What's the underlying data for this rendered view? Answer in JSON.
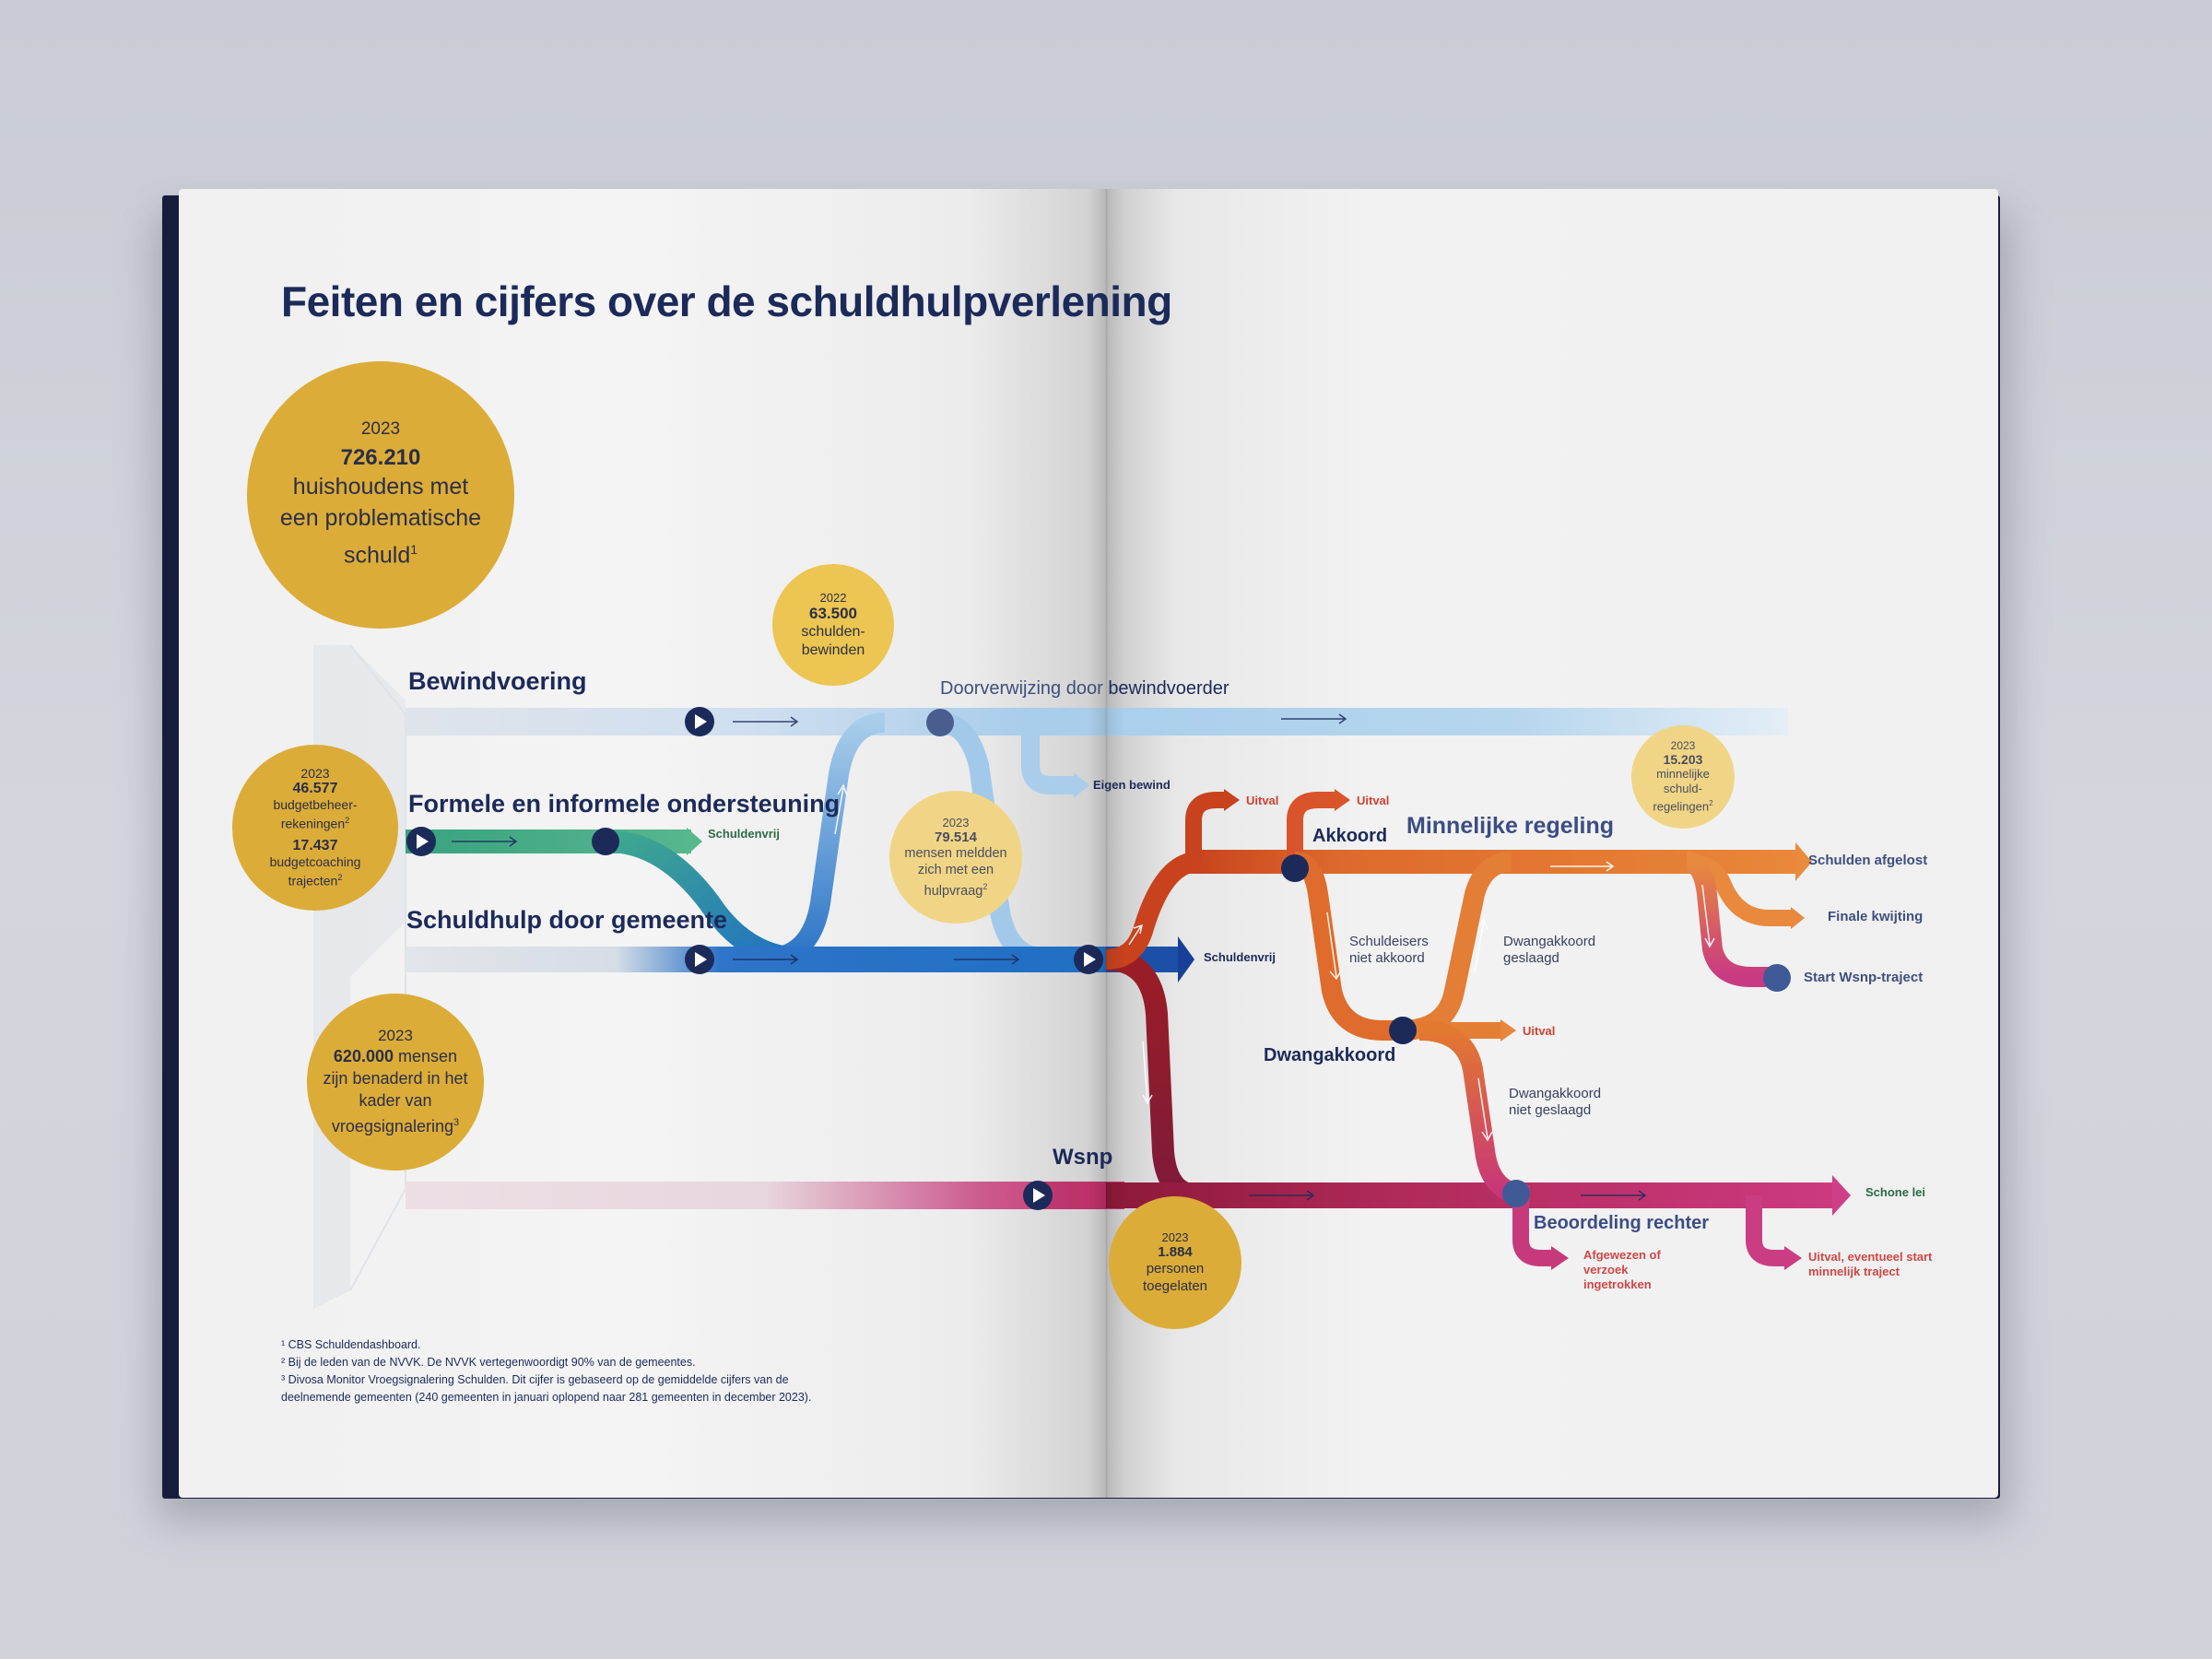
{
  "title": "Feiten en cijfers over de schuldhulpverlening",
  "stats": {
    "households": {
      "year": "2023",
      "value": "726.210",
      "text": "huishoudens met een problematische schuld",
      "note": "1"
    },
    "budget": {
      "year": "2023",
      "value1": "46.577",
      "text1": "budgetbeheer-rekeningen",
      "note1": "2",
      "value2": "17.437",
      "text2": "budgetcoaching trajecten",
      "note2": "2"
    },
    "signals": {
      "year": "2023",
      "value": "620.000",
      "text_a": "mensen",
      "text_b": "zijn benaderd in het kader van vroegsignalering",
      "note": "3"
    },
    "guardianship": {
      "year": "2022",
      "value": "63.500",
      "text": "schulden-bewinden"
    },
    "requests": {
      "year": "2023",
      "value": "79.514",
      "text": "mensen meldden zich met een hulpvraag",
      "note": "2"
    },
    "amicable": {
      "year": "2023",
      "value": "15.203",
      "text": "minnelijke schuld-regelingen",
      "note": "2"
    },
    "wsnp": {
      "year": "2023",
      "value": "1.884",
      "text": "personen toegelaten"
    }
  },
  "routes": {
    "bewindvoering": "Bewindvoering",
    "ondersteuning": "Formele en informele ondersteuning",
    "gemeente": "Schuldhulp door gemeente",
    "doorverwijzing_a": "Doorverwijzing door",
    "doorverwijzing_b": "bewindvoerder",
    "eigen_bewind": "Eigen bewind",
    "schuldenvrij_1": "Schuldenvrij",
    "schuldenvrij_2": "Schuldenvrij",
    "minnelijke": "Minnelijke regeling",
    "akkoord": "Akkoord",
    "uitval_1": "Uitval",
    "uitval_2": "Uitval",
    "uitval_3": "Uitval",
    "schuldeisers": "Schuldeisers niet akkoord",
    "dwang_geslaagd": "Dwangakkoord geslaagd",
    "dwangakkoord": "Dwangakkoord",
    "dwang_niet": "Dwangakkoord niet geslaagd",
    "schulden_afgelost": "Schulden afgelost",
    "finale": "Finale kwijting",
    "start_wsnp": "Start Wsnp-traject",
    "wsnp": "Wsnp",
    "beoordeling": "Beoordeling rechter",
    "schone_lei": "Schone lei",
    "afgewezen": "Afgewezen of verzoek ingetrokken",
    "uitval_eventueel": "Uitval, eventueel start minnelijk traject"
  },
  "footnotes": [
    "¹ CBS Schuldendashboard.",
    "² Bij de leden van de NVVK. De NVVK vertegenwoordigt 90% van de gemeentes.",
    "³ Divosa Monitor Vroegsignalering Schulden. Dit cijfer is gebaseerd op de gemiddelde cijfers van de",
    "deelnemende gemeenten (240 gemeenten in januari oplopend naar 281 gemeenten in december 2023)."
  ],
  "colors": {
    "gold": "#dcac38",
    "pale_gold": "#f1d586",
    "navy": "#1c2a5a",
    "blue": "#1f6fc4",
    "green": "#3aa680",
    "orange": "#e3792f",
    "magenta": "#c0307a"
  }
}
